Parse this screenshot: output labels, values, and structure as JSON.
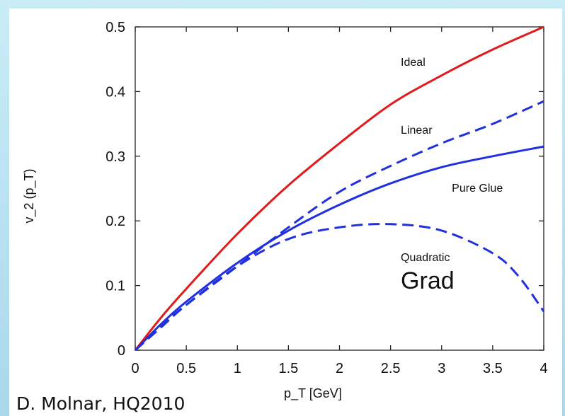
{
  "credit": "D. Molnar, HQ2010",
  "chart_data": {
    "type": "line",
    "title": "",
    "xlabel": "p_T [GeV]",
    "ylabel": "v_2 (p_T)",
    "xlim": [
      0,
      4
    ],
    "ylim": [
      0,
      0.5
    ],
    "xticks": [
      "0",
      "0.5",
      "1",
      "1.5",
      "2",
      "2.5",
      "3",
      "3.5",
      "4"
    ],
    "yticks": [
      "0",
      "0.1",
      "0.2",
      "0.3",
      "0.4",
      "0.5"
    ],
    "grid": false,
    "series": [
      {
        "name": "Ideal",
        "color": "#e11b1b",
        "style": "solid",
        "x": [
          0,
          0.25,
          0.5,
          1,
          1.5,
          2,
          2.5,
          3,
          3.5,
          4
        ],
        "y": [
          0,
          0.05,
          0.095,
          0.18,
          0.255,
          0.32,
          0.38,
          0.425,
          0.465,
          0.5
        ]
      },
      {
        "name": "Linear",
        "color": "#2030e0",
        "style": "dashed",
        "x": [
          0,
          0.25,
          0.5,
          1,
          1.5,
          2,
          2.5,
          3,
          3.5,
          4
        ],
        "y": [
          0,
          0.037,
          0.07,
          0.13,
          0.19,
          0.245,
          0.285,
          0.32,
          0.35,
          0.385
        ]
      },
      {
        "name": "Pure Glue",
        "color": "#2030e0",
        "style": "solid",
        "x": [
          0,
          0.25,
          0.5,
          1,
          1.5,
          2,
          2.5,
          3,
          3.5,
          4
        ],
        "y": [
          0,
          0.04,
          0.075,
          0.135,
          0.185,
          0.225,
          0.258,
          0.283,
          0.3,
          0.315
        ]
      },
      {
        "name": "Quadratic Grad",
        "color": "#2030e0",
        "style": "dashed",
        "x": [
          0,
          0.25,
          0.5,
          1,
          1.5,
          2,
          2.5,
          3,
          3.5,
          3.75,
          4
        ],
        "y": [
          0,
          0.035,
          0.07,
          0.13,
          0.172,
          0.19,
          0.195,
          0.185,
          0.15,
          0.115,
          0.06
        ]
      }
    ],
    "annotations": [
      {
        "text": "Ideal",
        "x": 2.6,
        "y": 0.44
      },
      {
        "text": "Linear",
        "x": 2.6,
        "y": 0.335
      },
      {
        "text": "Pure Glue",
        "x": 3.1,
        "y": 0.245
      },
      {
        "text": "Quadratic",
        "x": 2.6,
        "y": 0.138
      },
      {
        "text": "Grad",
        "x": 2.6,
        "y": 0.095
      }
    ]
  }
}
